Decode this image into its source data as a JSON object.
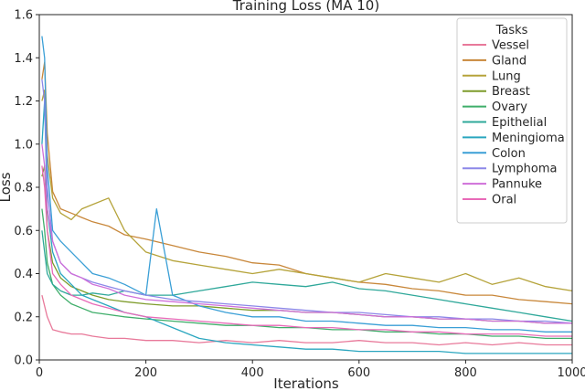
{
  "chart_data": {
    "type": "line",
    "title": "Training Loss (MA 10)",
    "xlabel": "Iterations",
    "ylabel": "Loss",
    "xlim": [
      0,
      1000
    ],
    "ylim": [
      0,
      1.6
    ],
    "xticks": [
      0,
      200,
      400,
      600,
      800,
      1000
    ],
    "yticks": [
      0.0,
      0.2,
      0.4,
      0.6,
      0.8,
      1.0,
      1.2,
      1.4,
      1.6
    ],
    "grid": false,
    "legend": {
      "title": "Tasks",
      "placement": "top-right"
    },
    "series": [
      {
        "name": "Vessel",
        "color": "#e8799a",
        "x": [
          5,
          15,
          25,
          40,
          60,
          80,
          100,
          130,
          160,
          200,
          250,
          300,
          350,
          400,
          450,
          500,
          550,
          600,
          650,
          700,
          750,
          800,
          850,
          900,
          950,
          1000
        ],
        "values": [
          0.3,
          0.2,
          0.14,
          0.13,
          0.12,
          0.12,
          0.11,
          0.1,
          0.1,
          0.09,
          0.09,
          0.08,
          0.09,
          0.08,
          0.09,
          0.08,
          0.08,
          0.09,
          0.08,
          0.08,
          0.07,
          0.08,
          0.07,
          0.08,
          0.07,
          0.07
        ]
      },
      {
        "name": "Gland",
        "color": "#c8873a",
        "x": [
          5,
          10,
          15,
          25,
          40,
          60,
          80,
          100,
          130,
          160,
          200,
          250,
          300,
          350,
          400,
          450,
          500,
          550,
          600,
          650,
          700,
          750,
          800,
          850,
          900,
          950,
          1000
        ],
        "values": [
          1.3,
          1.38,
          1.05,
          0.78,
          0.7,
          0.68,
          0.66,
          0.64,
          0.62,
          0.58,
          0.56,
          0.53,
          0.5,
          0.48,
          0.45,
          0.44,
          0.4,
          0.38,
          0.36,
          0.35,
          0.33,
          0.32,
          0.3,
          0.3,
          0.28,
          0.27,
          0.26
        ]
      },
      {
        "name": "Lung",
        "color": "#b5a33a",
        "x": [
          5,
          10,
          15,
          25,
          40,
          60,
          80,
          100,
          130,
          160,
          200,
          250,
          300,
          350,
          400,
          450,
          500,
          550,
          600,
          650,
          700,
          750,
          800,
          850,
          900,
          950,
          1000
        ],
        "values": [
          1.2,
          1.25,
          0.95,
          0.75,
          0.68,
          0.65,
          0.7,
          0.72,
          0.75,
          0.6,
          0.5,
          0.46,
          0.44,
          0.42,
          0.4,
          0.42,
          0.4,
          0.38,
          0.36,
          0.4,
          0.38,
          0.36,
          0.4,
          0.35,
          0.38,
          0.34,
          0.32
        ]
      },
      {
        "name": "Breast",
        "color": "#7e9c2b",
        "x": [
          5,
          10,
          15,
          25,
          40,
          60,
          80,
          100,
          130,
          160,
          200,
          250,
          300,
          350,
          400,
          450,
          500,
          550,
          600,
          650,
          700,
          750,
          800,
          850,
          900,
          950,
          1000
        ],
        "values": [
          0.85,
          0.9,
          0.6,
          0.45,
          0.38,
          0.34,
          0.32,
          0.3,
          0.28,
          0.27,
          0.26,
          0.25,
          0.25,
          0.24,
          0.23,
          0.23,
          0.22,
          0.22,
          0.21,
          0.2,
          0.2,
          0.19,
          0.19,
          0.18,
          0.18,
          0.17,
          0.17
        ]
      },
      {
        "name": "Ovary",
        "color": "#3fae6a",
        "x": [
          5,
          10,
          15,
          25,
          40,
          60,
          80,
          100,
          130,
          160,
          200,
          250,
          300,
          350,
          400,
          450,
          500,
          550,
          600,
          650,
          700,
          750,
          800,
          850,
          900,
          950,
          1000
        ],
        "values": [
          0.7,
          0.6,
          0.45,
          0.35,
          0.3,
          0.26,
          0.24,
          0.22,
          0.21,
          0.2,
          0.19,
          0.18,
          0.17,
          0.16,
          0.16,
          0.15,
          0.15,
          0.14,
          0.14,
          0.13,
          0.13,
          0.12,
          0.12,
          0.11,
          0.11,
          0.1,
          0.1
        ]
      },
      {
        "name": "Epithelial",
        "color": "#2fa89a",
        "x": [
          5,
          10,
          15,
          25,
          40,
          60,
          80,
          100,
          130,
          160,
          200,
          250,
          300,
          350,
          400,
          450,
          500,
          550,
          600,
          650,
          700,
          750,
          800,
          850,
          900,
          950,
          1000
        ],
        "values": [
          0.6,
          0.5,
          0.4,
          0.35,
          0.32,
          0.3,
          0.3,
          0.31,
          0.3,
          0.32,
          0.3,
          0.3,
          0.32,
          0.34,
          0.36,
          0.35,
          0.34,
          0.36,
          0.33,
          0.32,
          0.3,
          0.28,
          0.26,
          0.24,
          0.22,
          0.2,
          0.18
        ]
      },
      {
        "name": "Meningioma",
        "color": "#2aa6bf",
        "x": [
          5,
          10,
          15,
          25,
          40,
          60,
          80,
          100,
          130,
          160,
          200,
          250,
          300,
          350,
          400,
          450,
          500,
          550,
          600,
          650,
          700,
          750,
          800,
          850,
          900,
          950,
          1000
        ],
        "values": [
          1.0,
          1.2,
          0.7,
          0.5,
          0.4,
          0.35,
          0.3,
          0.28,
          0.25,
          0.22,
          0.2,
          0.15,
          0.1,
          0.08,
          0.07,
          0.06,
          0.05,
          0.05,
          0.04,
          0.04,
          0.04,
          0.04,
          0.03,
          0.03,
          0.03,
          0.03,
          0.03
        ]
      },
      {
        "name": "Colon",
        "color": "#3a9fd6",
        "x": [
          5,
          10,
          15,
          25,
          40,
          60,
          80,
          100,
          130,
          160,
          200,
          220,
          250,
          300,
          350,
          400,
          450,
          500,
          550,
          600,
          650,
          700,
          750,
          800,
          850,
          900,
          950,
          1000
        ],
        "values": [
          1.5,
          1.4,
          0.9,
          0.6,
          0.55,
          0.5,
          0.45,
          0.4,
          0.38,
          0.35,
          0.3,
          0.7,
          0.3,
          0.25,
          0.22,
          0.2,
          0.2,
          0.18,
          0.18,
          0.17,
          0.16,
          0.16,
          0.15,
          0.15,
          0.14,
          0.14,
          0.13,
          0.13
        ]
      },
      {
        "name": "Lymphoma",
        "color": "#8c87e8",
        "x": [
          5,
          10,
          15,
          25,
          40,
          60,
          80,
          100,
          130,
          160,
          200,
          250,
          300,
          350,
          400,
          450,
          500,
          550,
          600,
          650,
          700,
          750,
          800,
          850,
          900,
          950,
          1000
        ],
        "values": [
          1.3,
          1.2,
          0.8,
          0.55,
          0.45,
          0.4,
          0.38,
          0.36,
          0.34,
          0.32,
          0.3,
          0.28,
          0.27,
          0.26,
          0.25,
          0.24,
          0.23,
          0.22,
          0.22,
          0.21,
          0.2,
          0.2,
          0.19,
          0.19,
          0.18,
          0.18,
          0.17
        ]
      },
      {
        "name": "Pannuke",
        "color": "#cf6fd9",
        "x": [
          5,
          10,
          15,
          25,
          40,
          60,
          80,
          100,
          130,
          160,
          200,
          250,
          300,
          350,
          400,
          450,
          500,
          550,
          600,
          650,
          700,
          750,
          800,
          850,
          900,
          950,
          1000
        ],
        "values": [
          1.0,
          0.9,
          0.7,
          0.55,
          0.45,
          0.4,
          0.38,
          0.35,
          0.33,
          0.3,
          0.28,
          0.27,
          0.26,
          0.25,
          0.24,
          0.23,
          0.22,
          0.22,
          0.21,
          0.2,
          0.2,
          0.19,
          0.19,
          0.18,
          0.18,
          0.17,
          0.17
        ]
      },
      {
        "name": "Oral",
        "color": "#e86ab8",
        "x": [
          5,
          10,
          15,
          25,
          40,
          60,
          80,
          100,
          130,
          160,
          200,
          250,
          300,
          350,
          400,
          450,
          500,
          550,
          600,
          650,
          700,
          750,
          800,
          850,
          900,
          950,
          1000
        ],
        "values": [
          0.9,
          0.8,
          0.6,
          0.4,
          0.35,
          0.3,
          0.28,
          0.26,
          0.24,
          0.22,
          0.2,
          0.19,
          0.18,
          0.17,
          0.16,
          0.16,
          0.15,
          0.15,
          0.14,
          0.14,
          0.13,
          0.13,
          0.12,
          0.12,
          0.12,
          0.11,
          0.11
        ]
      }
    ]
  }
}
